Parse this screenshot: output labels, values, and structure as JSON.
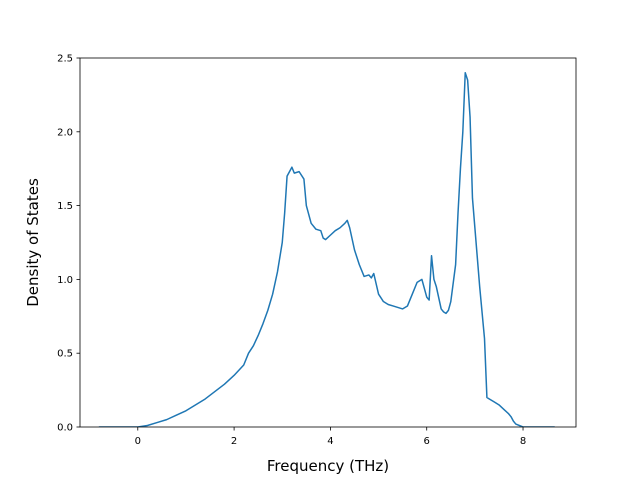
{
  "chart_data": {
    "type": "line",
    "title": "",
    "xlabel": "Frequency (THz)",
    "ylabel": "Density of States",
    "xlim": [
      -1.2,
      9.1
    ],
    "ylim": [
      0.0,
      2.5
    ],
    "grid": false,
    "legend": "none",
    "colors": {
      "line": "#1f77b4",
      "axes": "#000000",
      "background": "#ffffff"
    },
    "x_ticks": [
      {
        "value": 0,
        "label": "0"
      },
      {
        "value": 2,
        "label": "2"
      },
      {
        "value": 4,
        "label": "4"
      },
      {
        "value": 6,
        "label": "6"
      },
      {
        "value": 8,
        "label": "8"
      }
    ],
    "y_ticks": [
      {
        "value": 0.0,
        "label": "0.0"
      },
      {
        "value": 0.5,
        "label": "0.5"
      },
      {
        "value": 1.0,
        "label": "1.0"
      },
      {
        "value": 1.5,
        "label": "1.5"
      },
      {
        "value": 2.0,
        "label": "2.0"
      },
      {
        "value": 2.5,
        "label": "2.5"
      }
    ],
    "series": [
      {
        "x": [
          -0.8,
          0.0,
          0.2,
          0.4,
          0.6,
          0.8,
          1.0,
          1.2,
          1.4,
          1.6,
          1.8,
          2.0,
          2.2,
          2.3,
          2.4,
          2.5,
          2.6,
          2.7,
          2.8,
          2.9,
          3.0,
          3.05,
          3.1,
          3.2,
          3.25,
          3.35,
          3.45,
          3.5,
          3.6,
          3.7,
          3.8,
          3.85,
          3.9,
          4.0,
          4.1,
          4.2,
          4.3,
          4.35,
          4.4,
          4.5,
          4.6,
          4.7,
          4.8,
          4.85,
          4.9,
          5.0,
          5.1,
          5.2,
          5.3,
          5.4,
          5.5,
          5.6,
          5.7,
          5.8,
          5.9,
          6.0,
          6.05,
          6.1,
          6.15,
          6.2,
          6.3,
          6.35,
          6.4,
          6.45,
          6.5,
          6.6,
          6.65,
          6.7,
          6.75,
          6.8,
          6.85,
          6.9,
          6.95,
          7.0,
          7.1,
          7.2,
          7.25,
          7.3,
          7.4,
          7.5,
          7.6,
          7.7,
          7.75,
          7.8,
          7.85,
          8.0,
          8.2,
          8.65
        ],
        "values": [
          0.0,
          0.0,
          0.01,
          0.03,
          0.05,
          0.08,
          0.11,
          0.15,
          0.19,
          0.24,
          0.29,
          0.35,
          0.42,
          0.5,
          0.55,
          0.62,
          0.7,
          0.79,
          0.9,
          1.05,
          1.25,
          1.45,
          1.7,
          1.76,
          1.72,
          1.73,
          1.68,
          1.5,
          1.38,
          1.34,
          1.33,
          1.28,
          1.27,
          1.3,
          1.33,
          1.35,
          1.38,
          1.4,
          1.35,
          1.2,
          1.1,
          1.02,
          1.03,
          1.01,
          1.04,
          0.9,
          0.85,
          0.83,
          0.82,
          0.81,
          0.8,
          0.82,
          0.9,
          0.98,
          1.0,
          0.88,
          0.86,
          1.16,
          1.0,
          0.95,
          0.8,
          0.78,
          0.77,
          0.79,
          0.85,
          1.1,
          1.45,
          1.75,
          2.0,
          2.4,
          2.35,
          2.1,
          1.55,
          1.35,
          0.95,
          0.6,
          0.2,
          0.19,
          0.17,
          0.15,
          0.12,
          0.09,
          0.07,
          0.04,
          0.02,
          0.0,
          0.0,
          0.0
        ]
      }
    ]
  }
}
